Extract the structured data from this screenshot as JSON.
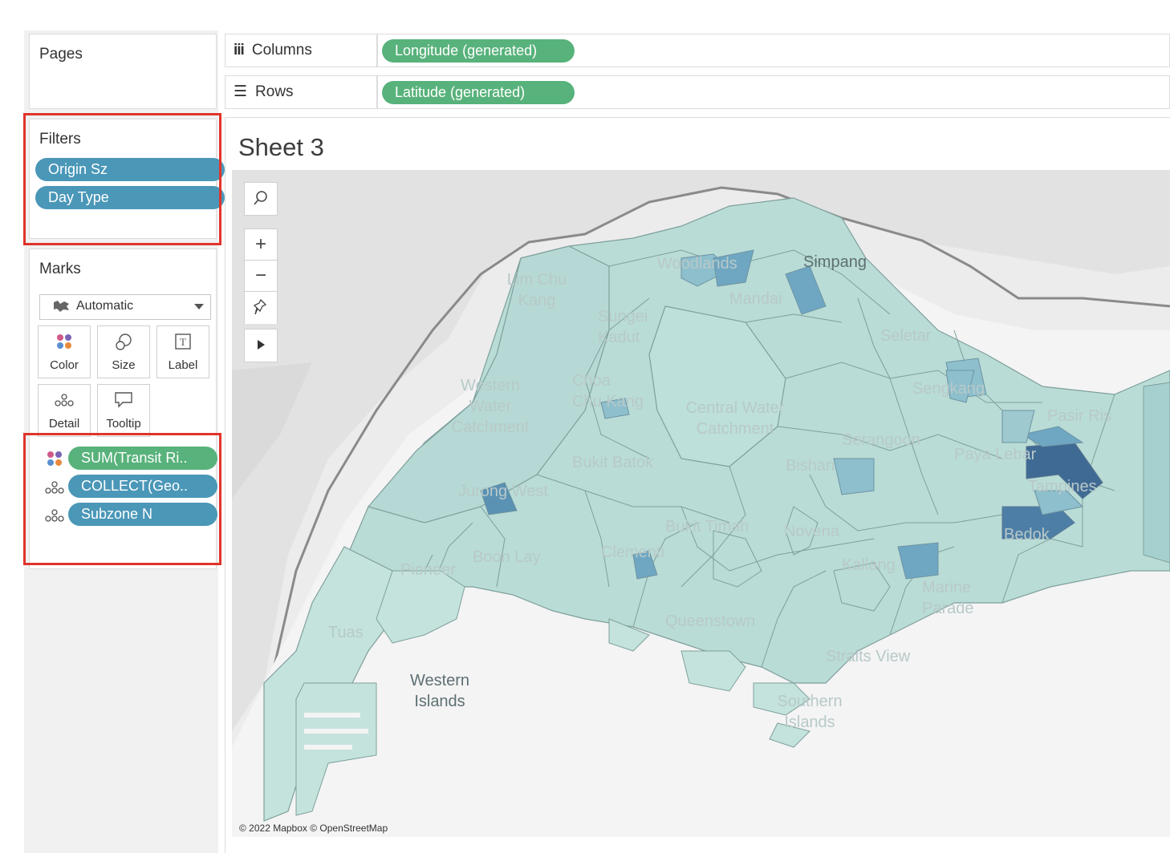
{
  "pages": {
    "title": "Pages"
  },
  "shelves": {
    "columns": {
      "label": "Columns",
      "icon": "columns-icon",
      "pill": "Longitude (generated)"
    },
    "rows": {
      "label": "Rows",
      "icon": "rows-icon",
      "pill": "Latitude (generated)"
    }
  },
  "filters": {
    "title": "Filters",
    "items": [
      "Origin Sz",
      "Day Type"
    ]
  },
  "marks": {
    "title": "Marks",
    "mark_type": "Automatic",
    "mark_type_icon": "map-icon",
    "buttons": [
      {
        "label": "Color",
        "icon": "color-icon"
      },
      {
        "label": "Size",
        "icon": "size-icon"
      },
      {
        "label": "Label",
        "icon": "label-icon"
      },
      {
        "label": "Detail",
        "icon": "detail-icon"
      },
      {
        "label": "Tooltip",
        "icon": "tooltip-icon"
      }
    ],
    "fields": [
      {
        "label": "SUM(Transit Ri..",
        "role": "color",
        "icon": "color-icon",
        "color": "green"
      },
      {
        "label": "COLLECT(Geo..",
        "role": "detail",
        "icon": "detail-icon",
        "color": "blue"
      },
      {
        "label": "Subzone N",
        "role": "detail",
        "icon": "detail-icon",
        "color": "blue"
      }
    ]
  },
  "sheet": {
    "title": "Sheet 3",
    "map_tools": [
      "search-icon",
      "zoom-in-icon",
      "zoom-out-icon",
      "pin-icon",
      "play-icon"
    ],
    "place_labels": [
      "Woodlands",
      "Simpang",
      "Mandai",
      "Lim Chu Kang",
      "Sungei Kadut",
      "Seletar",
      "Sengkang",
      "Pasir Ris",
      "Western Water Catchment",
      "Choa Chu Kang",
      "Central Water Catchment",
      "Serangoon",
      "Bukit Batok",
      "Bishan",
      "Paya Lebar",
      "Tampines",
      "Jurong West",
      "Bukit Timah",
      "Novena",
      "Bedok",
      "Boon Lay",
      "Clementi",
      "Pioneer",
      "Kallang",
      "Marine Parade",
      "Queenstown",
      "Tuas",
      "Straits View",
      "Western Islands",
      "Southern Islands"
    ],
    "attribution": "© 2022 Mapbox © OpenStreetMap"
  },
  "colors": {
    "highlight": "#e0342a",
    "pill_green": "#58b27b",
    "pill_blue": "#4a97b8",
    "choropleth_low": "#b9dcd6",
    "choropleth_high": "#3f6a94"
  }
}
